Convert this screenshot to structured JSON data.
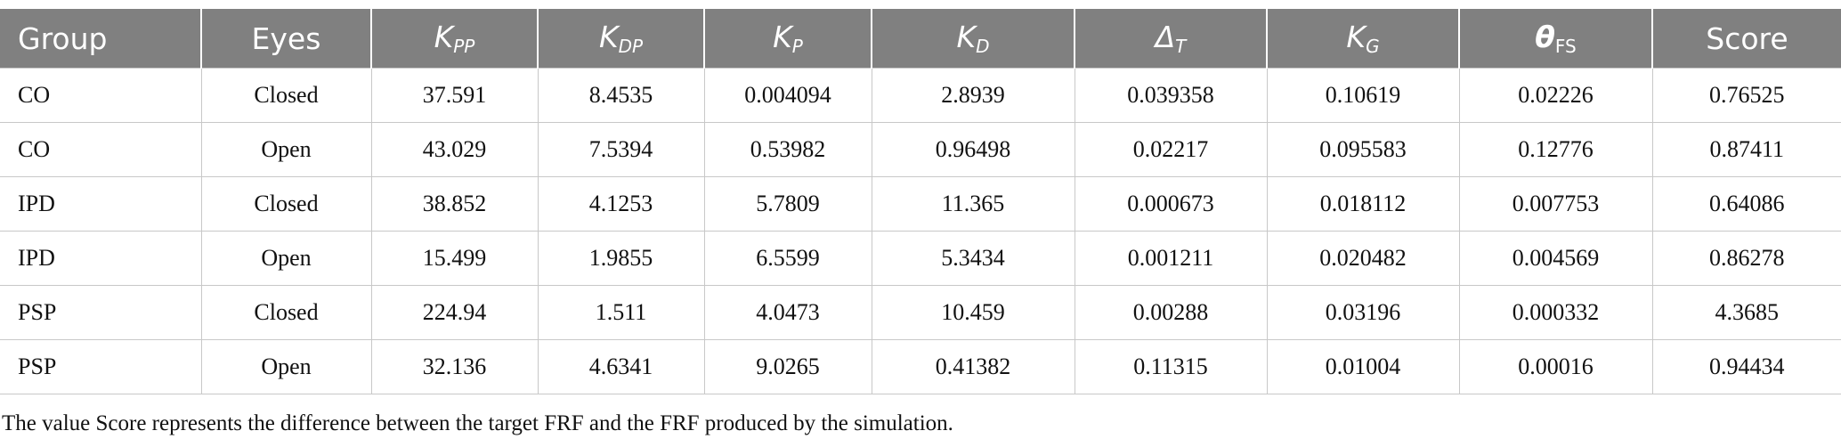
{
  "table": {
    "headers": [
      {
        "main": "Group"
      },
      {
        "main": "Eyes"
      },
      {
        "main": "K",
        "sub": "PP",
        "style": "italic"
      },
      {
        "main": "K",
        "sub": "DP",
        "style": "italic"
      },
      {
        "main": "K",
        "sub": "P",
        "style": "italic"
      },
      {
        "main": "K",
        "sub": "D",
        "style": "italic"
      },
      {
        "main": "Δ",
        "sub": "T",
        "style": "italic"
      },
      {
        "main": "K",
        "sub": "G",
        "style": "italic"
      },
      {
        "main": "θ",
        "sub": "FS",
        "style": "bold-italic"
      },
      {
        "main": "Score"
      }
    ],
    "rows": [
      [
        "CO",
        "Closed",
        "37.591",
        "8.4535",
        "0.004094",
        "2.8939",
        "0.039358",
        "0.10619",
        "0.02226",
        "0.76525"
      ],
      [
        "CO",
        "Open",
        "43.029",
        "7.5394",
        "0.53982",
        "0.96498",
        "0.02217",
        "0.095583",
        "0.12776",
        "0.87411"
      ],
      [
        "IPD",
        "Closed",
        "38.852",
        "4.1253",
        "5.7809",
        "11.365",
        "0.000673",
        "0.018112",
        "0.007753",
        "0.64086"
      ],
      [
        "IPD",
        "Open",
        "15.499",
        "1.9855",
        "6.5599",
        "5.3434",
        "0.001211",
        "0.020482",
        "0.004569",
        "0.86278"
      ],
      [
        "PSP",
        "Closed",
        "224.94",
        "1.511",
        "4.0473",
        "10.459",
        "0.00288",
        "0.03196",
        "0.000332",
        "4.3685"
      ],
      [
        "PSP",
        "Open",
        "32.136",
        "4.6341",
        "9.0265",
        "0.41382",
        "0.11315",
        "0.01004",
        "0.00016",
        "0.94434"
      ]
    ]
  },
  "caption": "The value Score represents the difference between the target FRF and the FRF produced by the simulation."
}
